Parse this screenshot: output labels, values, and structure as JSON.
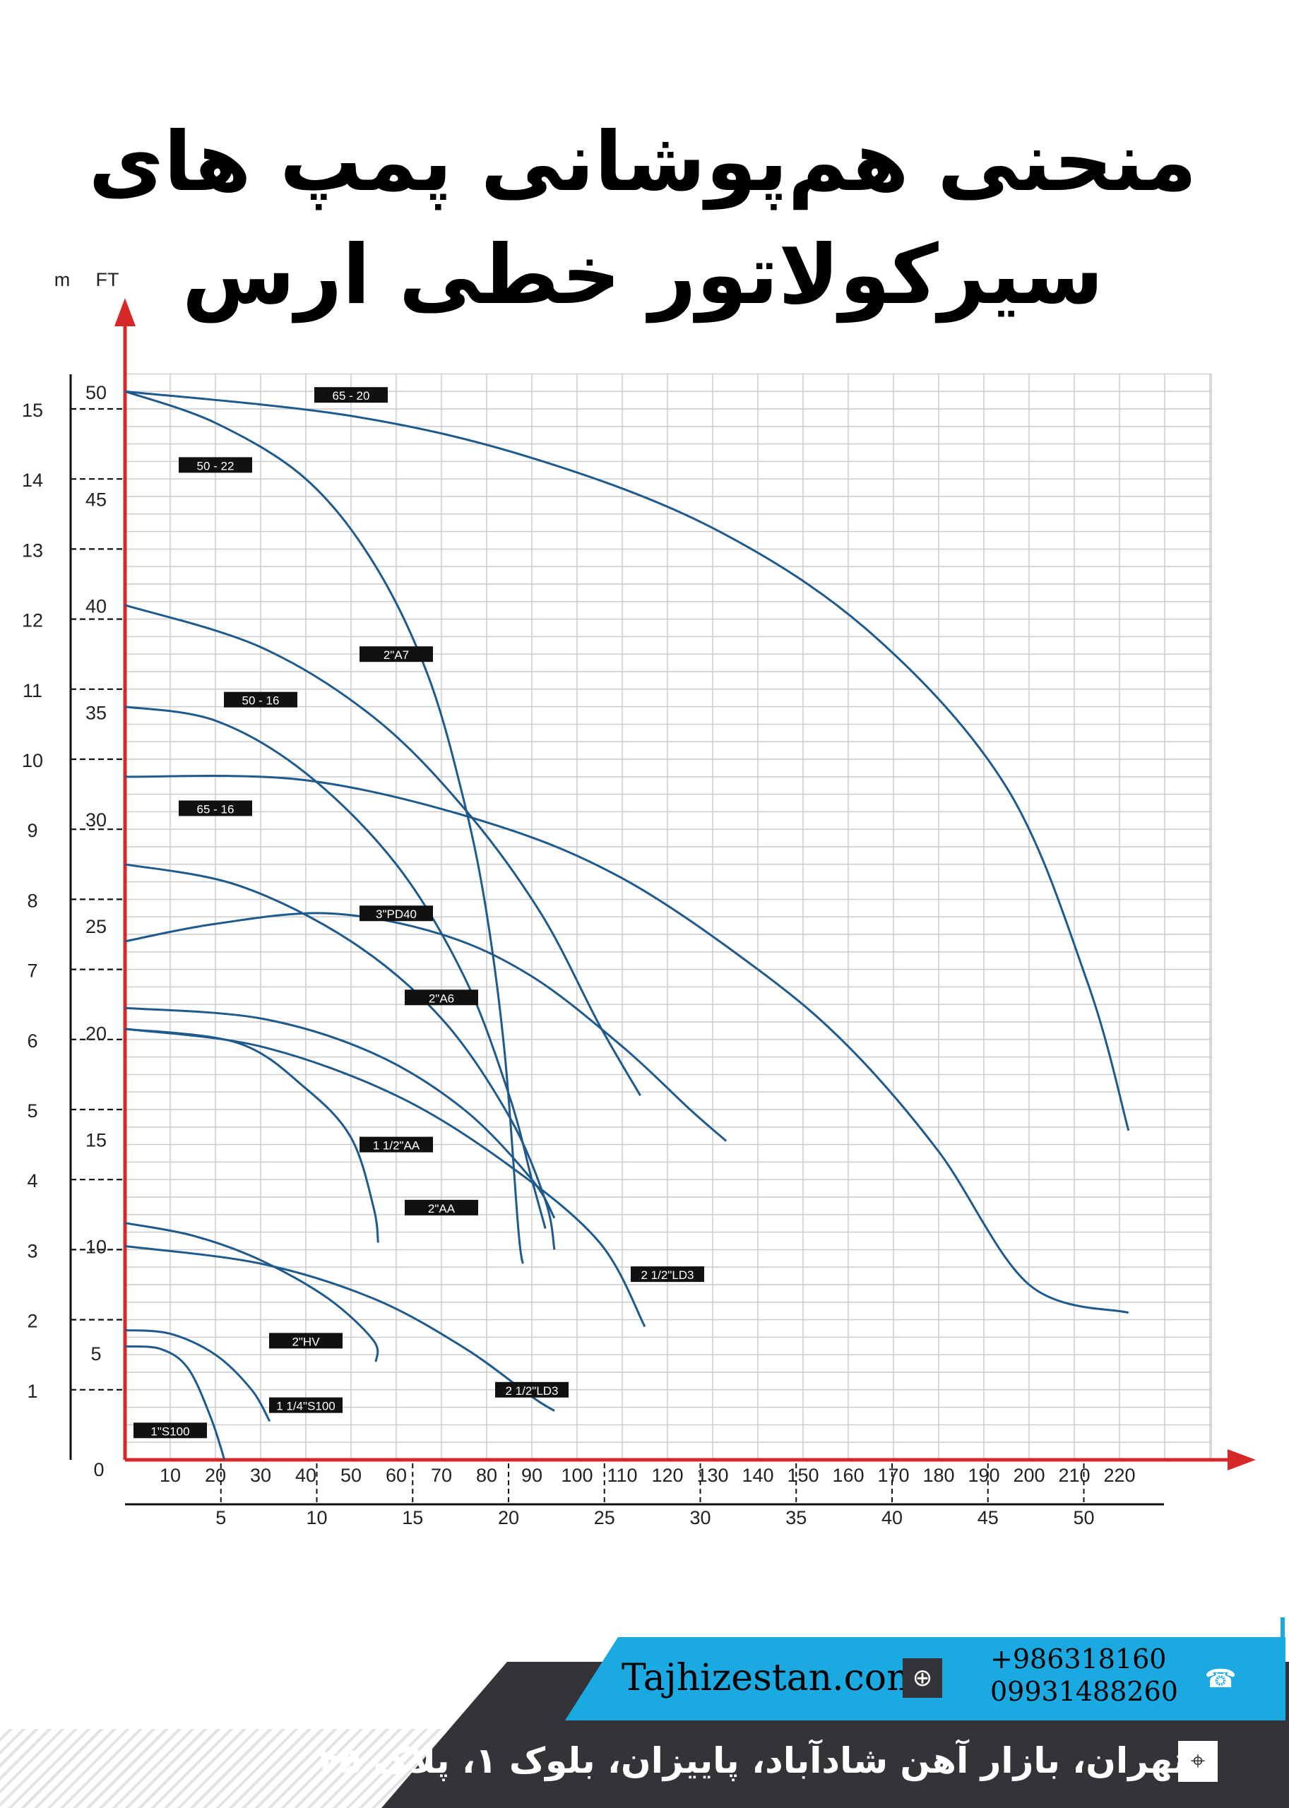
{
  "page": {
    "title": "منحنی هم‌پوشانی پمپ های سیرکولاتور خطی ارس"
  },
  "footer": {
    "website": "Tajhizestan.com",
    "phones": [
      "+986318160",
      "09931488260"
    ],
    "address": "تهران، بازار آهن شادآباد، پاییزان، بلوک ۱، پلاک ۴۵",
    "icons": [
      "globe-icon",
      "phone-icon",
      "location-icon"
    ],
    "colors": {
      "blue": "#1aa9e1",
      "dark": "#333338"
    }
  },
  "chart_data": {
    "type": "line",
    "title": "",
    "axis_color": "#d62828",
    "curve_color": "#1f5a8c",
    "y_units": [
      "m",
      "FT"
    ],
    "y_left": {
      "label": "m",
      "ticks": [
        0,
        1,
        2,
        3,
        4,
        5,
        6,
        7,
        8,
        9,
        10,
        11,
        12,
        13,
        14,
        15
      ]
    },
    "y_right": {
      "label": "FT",
      "ticks": [
        5,
        10,
        15,
        20,
        25,
        30,
        35,
        40,
        45,
        50
      ]
    },
    "x_top": {
      "ticks": [
        10,
        20,
        30,
        40,
        50,
        60,
        70,
        80,
        90,
        100,
        110,
        120,
        130,
        140,
        150,
        160,
        170,
        180,
        190,
        200,
        210,
        220
      ]
    },
    "x_bottom": {
      "ticks": [
        5,
        10,
        15,
        20,
        25,
        30,
        35,
        40,
        45,
        50
      ]
    },
    "ylim_m": [
      0,
      15.4
    ],
    "xlim_top": [
      0,
      240
    ],
    "grid": true,
    "series": [
      {
        "name": "65 - 20",
        "points": [
          [
            0,
            15.25
          ],
          [
            50,
            14.9
          ],
          [
            90,
            14.3
          ],
          [
            130,
            13.3
          ],
          [
            165,
            11.8
          ],
          [
            195,
            9.6
          ],
          [
            213,
            6.8
          ],
          [
            222,
            4.7
          ]
        ]
      },
      {
        "name": "50 - 22",
        "points": [
          [
            0,
            15.25
          ],
          [
            20,
            14.8
          ],
          [
            40,
            14.0
          ],
          [
            55,
            12.8
          ],
          [
            67,
            11.2
          ],
          [
            75,
            9.4
          ],
          [
            80,
            7.8
          ],
          [
            84,
            5.8
          ],
          [
            87,
            3.3
          ],
          [
            88,
            2.8
          ]
        ]
      },
      {
        "name": "2\"A7",
        "points": [
          [
            0,
            12.2
          ],
          [
            30,
            11.6
          ],
          [
            55,
            10.6
          ],
          [
            75,
            9.3
          ],
          [
            92,
            7.8
          ],
          [
            105,
            6.2
          ],
          [
            114,
            5.2
          ]
        ]
      },
      {
        "name": "50 - 16",
        "points": [
          [
            0,
            10.75
          ],
          [
            20,
            10.55
          ],
          [
            40,
            9.8
          ],
          [
            60,
            8.5
          ],
          [
            75,
            6.9
          ],
          [
            85,
            5.2
          ],
          [
            90,
            4.0
          ],
          [
            93,
            3.3
          ]
        ]
      },
      {
        "name": "65 - 16",
        "points": [
          [
            0,
            9.75
          ],
          [
            40,
            9.7
          ],
          [
            80,
            9.1
          ],
          [
            110,
            8.3
          ],
          [
            140,
            7.0
          ],
          [
            160,
            5.9
          ],
          [
            180,
            4.4
          ],
          [
            200,
            2.5
          ],
          [
            222,
            2.1
          ]
        ]
      },
      {
        "name": "3\"PD40",
        "points": [
          [
            0,
            7.4
          ],
          [
            20,
            7.65
          ],
          [
            45,
            7.8
          ],
          [
            70,
            7.5
          ],
          [
            90,
            6.9
          ],
          [
            110,
            5.9
          ],
          [
            125,
            5.0
          ],
          [
            133,
            4.55
          ]
        ]
      },
      {
        "name": "2\"A6",
        "points": [
          [
            0,
            8.5
          ],
          [
            25,
            8.2
          ],
          [
            50,
            7.4
          ],
          [
            70,
            6.3
          ],
          [
            85,
            4.9
          ],
          [
            93,
            3.7
          ],
          [
            95,
            3.0
          ]
        ]
      },
      {
        "name": "1 1/2\"AA",
        "points": [
          [
            0,
            6.15
          ],
          [
            25,
            5.95
          ],
          [
            40,
            5.3
          ],
          [
            50,
            4.6
          ],
          [
            55,
            3.6
          ],
          [
            56,
            3.1
          ]
        ]
      },
      {
        "name": "2\"AA",
        "points": [
          [
            0,
            6.45
          ],
          [
            30,
            6.3
          ],
          [
            55,
            5.8
          ],
          [
            75,
            5.0
          ],
          [
            90,
            4.0
          ],
          [
            95,
            3.45
          ]
        ]
      },
      {
        "name": "2 1/2\"LD3",
        "points": [
          [
            0,
            6.15
          ],
          [
            30,
            5.9
          ],
          [
            60,
            5.2
          ],
          [
            85,
            4.2
          ],
          [
            105,
            3.1
          ],
          [
            115,
            1.9
          ]
        ]
      },
      {
        "name": "2\"HV",
        "points": [
          [
            0,
            3.38
          ],
          [
            15,
            3.2
          ],
          [
            30,
            2.85
          ],
          [
            45,
            2.3
          ],
          [
            55,
            1.7
          ],
          [
            55.5,
            1.4
          ]
        ]
      },
      {
        "name": "2 1/2\"LD3",
        "points": [
          [
            0,
            3.05
          ],
          [
            30,
            2.8
          ],
          [
            55,
            2.3
          ],
          [
            75,
            1.6
          ],
          [
            90,
            0.9
          ],
          [
            95,
            0.7
          ]
        ]
      },
      {
        "name": "1 1/4\"S100",
        "points": [
          [
            0,
            1.85
          ],
          [
            10,
            1.8
          ],
          [
            20,
            1.5
          ],
          [
            28,
            1.0
          ],
          [
            32,
            0.55
          ]
        ]
      },
      {
        "name": "1\"S100",
        "points": [
          [
            0,
            1.62
          ],
          [
            8,
            1.58
          ],
          [
            14,
            1.3
          ],
          [
            19,
            0.6
          ],
          [
            22,
            0
          ]
        ]
      }
    ],
    "labels": [
      {
        "text": "65 - 20",
        "at": [
          50,
          15.2
        ]
      },
      {
        "text": "50 - 22",
        "at": [
          20,
          14.2
        ]
      },
      {
        "text": "2\"A7",
        "at": [
          60,
          11.5
        ]
      },
      {
        "text": "50 - 16",
        "at": [
          30,
          10.85
        ]
      },
      {
        "text": "65 - 16",
        "at": [
          20,
          9.3
        ]
      },
      {
        "text": "3\"PD40",
        "at": [
          60,
          7.8
        ]
      },
      {
        "text": "2\"A6",
        "at": [
          70,
          6.6
        ]
      },
      {
        "text": "1 1/2\"AA",
        "at": [
          60,
          4.5
        ]
      },
      {
        "text": "2\"AA",
        "at": [
          70,
          3.6
        ]
      },
      {
        "text": "2 1/2\"LD3",
        "at": [
          120,
          2.65
        ]
      },
      {
        "text": "2\"HV",
        "at": [
          40,
          1.7
        ]
      },
      {
        "text": "2 1/2\"LD3",
        "at": [
          90,
          1.0
        ]
      },
      {
        "text": "1 1/4\"S100",
        "at": [
          40,
          0.78
        ]
      },
      {
        "text": "1\"S100",
        "at": [
          10,
          0.42
        ]
      }
    ]
  }
}
